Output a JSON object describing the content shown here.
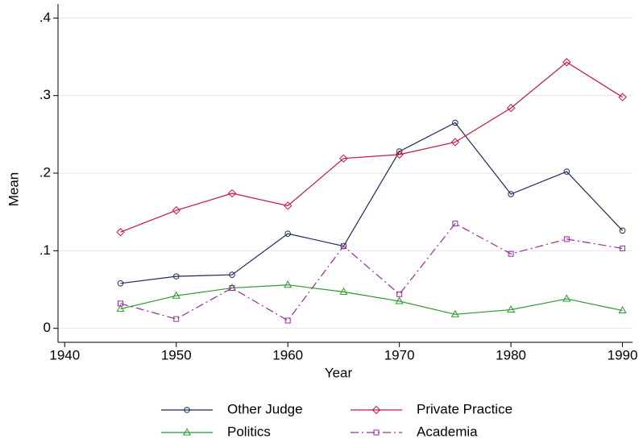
{
  "chart_data": {
    "type": "line",
    "x_label": "Year",
    "y_label": "Mean",
    "x": [
      1945,
      1950,
      1955,
      1960,
      1965,
      1970,
      1975,
      1980,
      1985,
      1990
    ],
    "series": [
      {
        "name": "Other Judge",
        "color": "#1a2b5c",
        "marker": "circle",
        "dash": "solid",
        "values": [
          0.058,
          0.067,
          0.069,
          0.122,
          0.106,
          0.228,
          0.265,
          0.173,
          0.202,
          0.126
        ]
      },
      {
        "name": "Private Practice",
        "color": "#c8143c",
        "marker": "diamond",
        "dash": "solid",
        "values": [
          0.124,
          0.152,
          0.174,
          0.158,
          0.219,
          0.224,
          0.24,
          0.284,
          0.343,
          0.298
        ]
      },
      {
        "name": "Politics",
        "color": "#2a9a2a",
        "marker": "triangle",
        "dash": "solid",
        "values": [
          0.025,
          0.042,
          0.052,
          0.056,
          0.047,
          0.035,
          0.018,
          0.024,
          0.038,
          0.023
        ]
      },
      {
        "name": "Academia",
        "color": "#9a2a9a",
        "marker": "square",
        "dash": "dashdot",
        "values": [
          0.032,
          0.012,
          0.052,
          0.01,
          0.106,
          0.044,
          0.135,
          0.096,
          0.115,
          0.103
        ]
      }
    ],
    "xlim": [
      1939.4,
      1990.9
    ],
    "xticks": [
      1940,
      1950,
      1960,
      1970,
      1980,
      1990
    ],
    "ylim": [
      -0.018,
      0.418
    ],
    "yticks": [
      0,
      {
        "value": 0.1,
        "label": ".1"
      },
      {
        "value": 0.2,
        "label": ".2"
      },
      {
        "value": 0.3,
        "label": ".3"
      },
      {
        "value": 0.4,
        "label": ".4"
      }
    ],
    "grid": true
  }
}
